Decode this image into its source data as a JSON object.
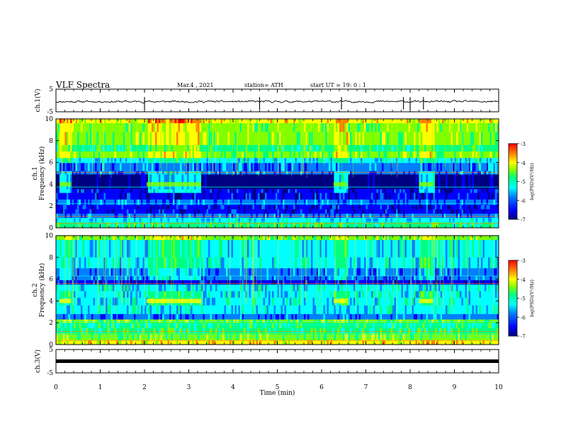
{
  "header": {
    "title": "VLF Spectra",
    "date": "Mar.4 , 2021",
    "station": "station= ATH",
    "start": "start UT = 19: 0 : 1"
  },
  "colors": {
    "cmap": [
      "#000080",
      "#0000ff",
      "#0080ff",
      "#00ffff",
      "#00ff80",
      "#80ff00",
      "#ffff00",
      "#ff8000",
      "#ff0000"
    ],
    "trace": "#000000"
  },
  "chart_data": [
    {
      "type": "line",
      "name": "ch1-waveform",
      "ylabel": "ch.1(V)",
      "ylim": [
        -5,
        5
      ],
      "y_ticks": [
        "5",
        "-5"
      ],
      "baseline": -0.5,
      "spikes_min": [
        2.0,
        4.6,
        6.45,
        7.85,
        8.0,
        8.3
      ]
    },
    {
      "type": "heatmap",
      "name": "ch1-spectrogram",
      "ylabel_line1": "ch.1",
      "ylabel_line2": "Frequency (kHz)",
      "ylim": [
        0,
        10
      ],
      "y_ticks": [
        "0",
        "2",
        "4",
        "6",
        "8",
        "10"
      ],
      "colorbar": {
        "label": "log(PSD)(V²/Hz)",
        "range": [
          -7,
          -3
        ],
        "ticks": [
          "-3",
          "-4",
          "-5",
          "-6",
          "-7"
        ]
      },
      "bursts_min": [
        [
          0.08,
          0.34
        ],
        [
          2.05,
          3.28
        ],
        [
          6.27,
          6.58
        ],
        [
          8.2,
          8.52
        ]
      ],
      "burst_freq_khz": 4.0
    },
    {
      "type": "heatmap",
      "name": "ch2-spectrogram",
      "ylabel_line1": "ch.2",
      "ylabel_line2": "Frequency (kHz)",
      "ylim": [
        0,
        10
      ],
      "y_ticks": [
        "0",
        "2",
        "4",
        "6",
        "8",
        "10"
      ],
      "colorbar": {
        "label": "log(PSD)(V²/Hz)",
        "range": [
          -7,
          -3
        ],
        "ticks": [
          "-3",
          "-4",
          "-5",
          "-6",
          "-7"
        ]
      },
      "bursts_min": [
        [
          0.08,
          0.34
        ],
        [
          2.05,
          3.28
        ],
        [
          6.27,
          6.58
        ],
        [
          8.2,
          8.52
        ]
      ],
      "burst_freq_khz": 4.0
    },
    {
      "type": "line",
      "name": "ch3-waveform",
      "ylabel": "ch.3(V)",
      "ylim": [
        -5,
        5
      ],
      "y_ticks": [
        "5",
        "-5"
      ],
      "baseline": 0
    }
  ],
  "xaxis": {
    "label": "Time (min)",
    "xlim": [
      0,
      10
    ],
    "ticks": [
      "0",
      "1",
      "2",
      "3",
      "4",
      "5",
      "6",
      "7",
      "8",
      "9",
      "10"
    ]
  }
}
